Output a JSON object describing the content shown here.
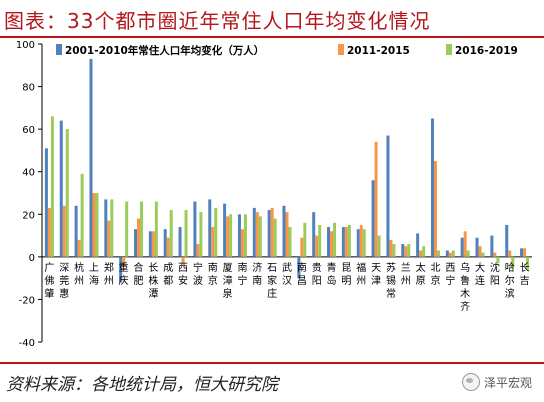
{
  "title": "图表：33个都市圈近年常住人口年均变化情况",
  "source": "资料来源：各地统计局，恒大研究院",
  "watermark": "泽平宏观",
  "colors": {
    "s1": "#4f81bd",
    "s2": "#f79646",
    "s3": "#9bcb5b",
    "title": "#b5161c"
  },
  "chart_data": {
    "type": "bar",
    "ylim": [
      -40,
      100
    ],
    "yticks": [
      -40,
      -20,
      0,
      20,
      40,
      60,
      80,
      100
    ],
    "legend_position": "top-right",
    "categories": [
      "广佛肇",
      "深莞惠",
      "杭州",
      "上海",
      "郑州",
      "重庆",
      "合肥",
      "长株潭",
      "成都",
      "西安",
      "宁波",
      "南京",
      "厦漳泉",
      "南宁",
      "济南",
      "石家庄",
      "武汉",
      "南昌",
      "贵阳",
      "青岛",
      "昆明",
      "福州",
      "天津",
      "苏锡常",
      "兰州",
      "太原",
      "北京",
      "西宁",
      "乌鲁木齐",
      "大连",
      "沈阳",
      "哈尔滨",
      "长吉"
    ],
    "series": [
      {
        "name": "2001-2010年常住人口年均变化（万人）",
        "values": [
          51,
          64,
          24,
          93,
          27,
          -12,
          13,
          12,
          13,
          14,
          26,
          27,
          25,
          20,
          23,
          22,
          24,
          -10,
          21,
          14,
          14,
          13,
          36,
          57,
          6,
          11,
          65,
          3,
          9,
          9,
          10,
          15,
          4
        ]
      },
      {
        "name": "2011-2015",
        "values": [
          23,
          24,
          8,
          30,
          17,
          -4,
          18,
          12,
          9,
          -3,
          6,
          14,
          19,
          13,
          21,
          23,
          21,
          9,
          10,
          12,
          14,
          15,
          54,
          8,
          5,
          3,
          45,
          2,
          12,
          5,
          2,
          3,
          4
        ]
      },
      {
        "name": "2016-2019",
        "values": [
          66,
          60,
          39,
          30,
          27,
          26,
          26,
          26,
          22,
          22,
          21,
          23,
          20,
          20,
          19,
          18,
          14,
          16,
          15,
          16,
          15,
          13,
          10,
          6,
          6,
          5,
          3,
          3,
          3,
          2,
          -3,
          -5,
          -6
        ]
      }
    ]
  }
}
